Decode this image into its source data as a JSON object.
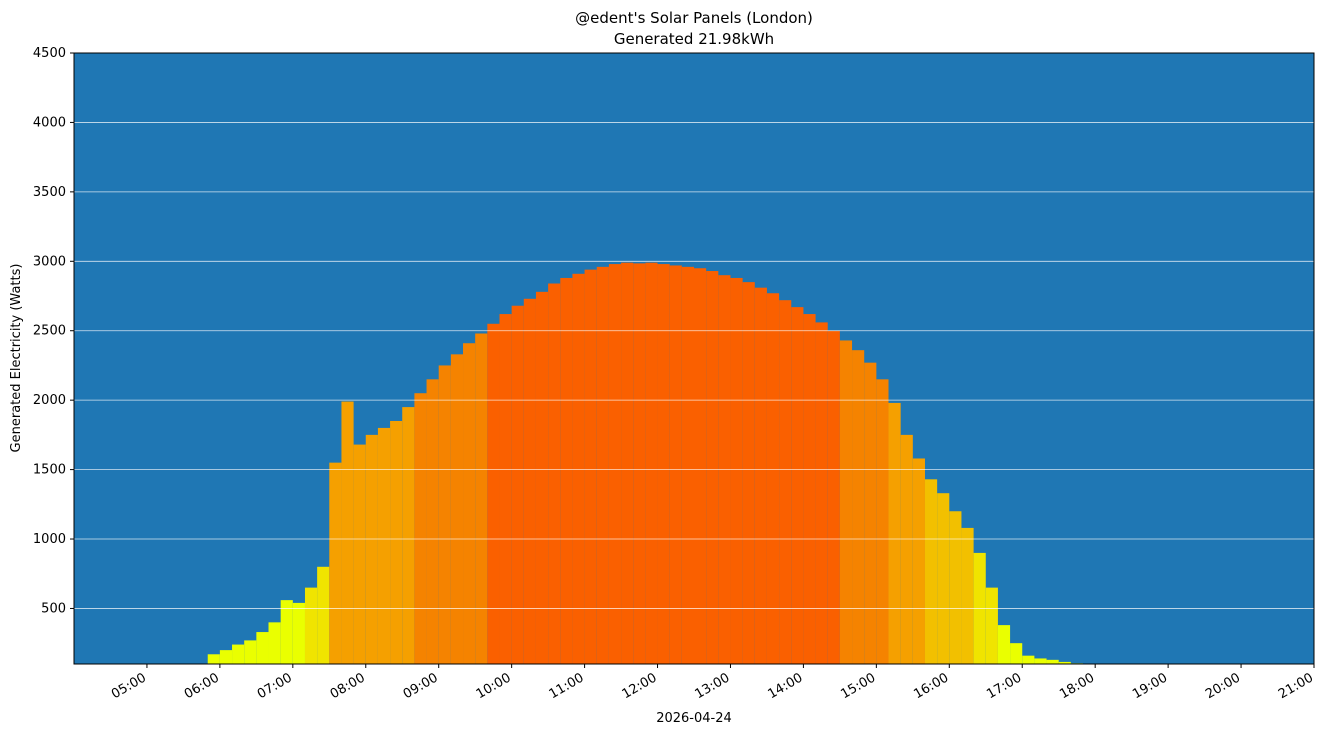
{
  "chart_data": {
    "type": "bar",
    "title": "@edent's Solar Panels (London)",
    "subtitle": "Generated 21.98kWh",
    "x_label": "2026-04-24",
    "y_label": "Generated Electricity (Watts)",
    "background": "#1f77b4",
    "grid": true,
    "x": [
      "05:50",
      "06:00",
      "06:10",
      "06:20",
      "06:30",
      "06:40",
      "06:50",
      "07:00",
      "07:10",
      "07:20",
      "07:30",
      "07:40",
      "07:50",
      "08:00",
      "08:10",
      "08:20",
      "08:30",
      "08:40",
      "08:50",
      "09:00",
      "09:10",
      "09:20",
      "09:30",
      "09:40",
      "09:50",
      "10:00",
      "10:10",
      "10:20",
      "10:30",
      "10:40",
      "10:50",
      "11:00",
      "11:10",
      "11:20",
      "11:30",
      "11:40",
      "11:50",
      "12:00",
      "12:10",
      "12:20",
      "12:30",
      "12:40",
      "12:50",
      "13:00",
      "13:10",
      "13:20",
      "13:30",
      "13:40",
      "13:50",
      "14:00",
      "14:10",
      "14:20",
      "14:30",
      "14:40",
      "14:50",
      "15:00",
      "15:10",
      "15:20",
      "15:30",
      "15:40",
      "15:50",
      "16:00",
      "16:10",
      "16:20",
      "16:30",
      "16:40",
      "16:50",
      "17:00",
      "17:10",
      "17:20",
      "17:30",
      "17:40",
      "17:50"
    ],
    "values": [
      170,
      200,
      240,
      270,
      330,
      400,
      560,
      540,
      650,
      800,
      1550,
      1990,
      1680,
      1750,
      1800,
      1850,
      1950,
      2050,
      2150,
      2250,
      2330,
      2410,
      2480,
      2550,
      2620,
      2680,
      2730,
      2780,
      2840,
      2880,
      2910,
      2940,
      2960,
      2980,
      2990,
      2985,
      2990,
      2980,
      2970,
      2960,
      2950,
      2930,
      2900,
      2880,
      2850,
      2810,
      2770,
      2720,
      2670,
      2620,
      2560,
      2500,
      2430,
      2360,
      2270,
      2150,
      1980,
      1750,
      1580,
      1430,
      1330,
      1200,
      1080,
      900,
      650,
      380,
      250,
      160,
      140,
      130,
      115,
      105,
      95
    ],
    "colors": [
      "#eaff00",
      "#eaff00",
      "#eaff00",
      "#eaff00",
      "#eaff00",
      "#eaff00",
      "#eaff00",
      "#eaff00",
      "#f0e400",
      "#f0e400",
      "#f5a000",
      "#f5a000",
      "#f5a000",
      "#f5a000",
      "#f5a000",
      "#f5a000",
      "#f5a000",
      "#f58300",
      "#f58300",
      "#f58300",
      "#f58300",
      "#f58300",
      "#f58300",
      "#fa6000",
      "#fa6000",
      "#fa6000",
      "#fa6000",
      "#fa6000",
      "#fa6000",
      "#fa6000",
      "#fa6000",
      "#fa6000",
      "#fa6000",
      "#fa6000",
      "#fa6000",
      "#fa6000",
      "#fa6000",
      "#fa6000",
      "#fa6000",
      "#fa6000",
      "#fa6000",
      "#fa6000",
      "#fa6000",
      "#fa6000",
      "#fa6000",
      "#fa6000",
      "#fa6000",
      "#fa6000",
      "#fa6000",
      "#fa6000",
      "#fa6000",
      "#fa6000",
      "#f58300",
      "#f58300",
      "#f58300",
      "#f58300",
      "#f5a000",
      "#f5a000",
      "#f5a000",
      "#f2c000",
      "#f2c000",
      "#f2c000",
      "#f2c000",
      "#f0e400",
      "#f0e400",
      "#eaff00",
      "#eaff00",
      "#eaff00",
      "#eaff00",
      "#eaff00",
      "#eaff00",
      "#eaff00",
      "#eaff00"
    ],
    "xlim": [
      "04:00",
      "21:00"
    ],
    "xticks": [
      "05:00",
      "06:00",
      "07:00",
      "08:00",
      "09:00",
      "10:00",
      "11:00",
      "12:00",
      "13:00",
      "14:00",
      "15:00",
      "16:00",
      "17:00",
      "18:00",
      "19:00",
      "20:00",
      "21:00"
    ],
    "ylim": [
      100,
      4500
    ],
    "yticks": [
      500,
      1000,
      1500,
      2000,
      2500,
      3000,
      3500,
      4000,
      4500
    ]
  }
}
